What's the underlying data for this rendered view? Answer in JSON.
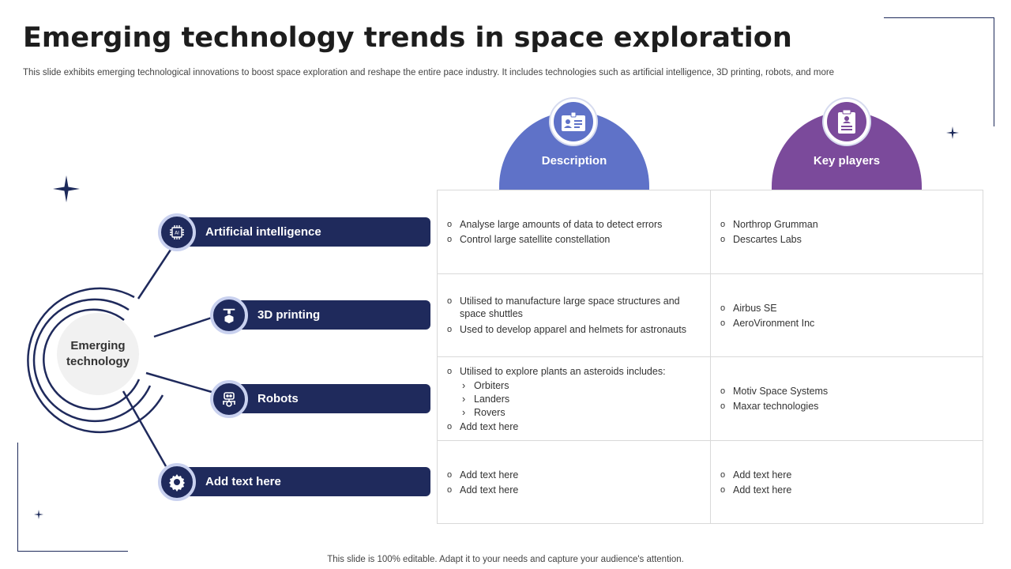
{
  "header": {
    "title": "Emerging technology trends in space exploration",
    "subtitle": "This slide exhibits emerging technological innovations to boost space exploration and reshape the entire pace industry. It includes technologies such as artificial intelligence, 3D printing, robots, and more"
  },
  "footer": "This slide is 100% editable. Adapt it to your needs and capture your audience's attention.",
  "hub": {
    "label_line1": "Emerging",
    "label_line2": "technology"
  },
  "columns": {
    "description": {
      "label": "Description",
      "color": "#5f72c8",
      "icon": "id-card-icon"
    },
    "key_players": {
      "label": "Key players",
      "color": "#7b4a9b",
      "icon": "clipboard-user-icon"
    }
  },
  "technologies": [
    {
      "label": "Artificial intelligence",
      "icon": "ai-chip-icon"
    },
    {
      "label": "3D printing",
      "icon": "3d-printer-icon"
    },
    {
      "label": "Robots",
      "icon": "robot-icon"
    },
    {
      "label": "Add text here",
      "icon": "gear-icon"
    }
  ],
  "rows": [
    {
      "description": [
        "Analyse large amounts of data to detect errors",
        "Control large  satellite constellation"
      ],
      "players": [
        "Northrop Grumman",
        "Descartes Labs"
      ]
    },
    {
      "description": [
        "Utilised to manufacture large space structures and space shuttles",
        "Used to develop  apparel and helmets for astronauts"
      ],
      "players": [
        "Airbus SE",
        "AeroVironment  Inc"
      ]
    },
    {
      "description_intro": "Utilised to explore plants an asteroids includes:",
      "description_sub": [
        "Orbiters",
        "Landers",
        "Rovers"
      ],
      "description_after": "Add text here",
      "players": [
        "Motiv Space Systems",
        "Maxar technologies"
      ]
    },
    {
      "description": [
        "Add text here",
        "Add text here"
      ],
      "players": [
        "Add text here",
        "Add text here"
      ]
    }
  ],
  "colors": {
    "navy": "#1f2a5c",
    "ring": "#c9d1ef",
    "description": "#5f72c8",
    "key_players": "#7b4a9b"
  }
}
